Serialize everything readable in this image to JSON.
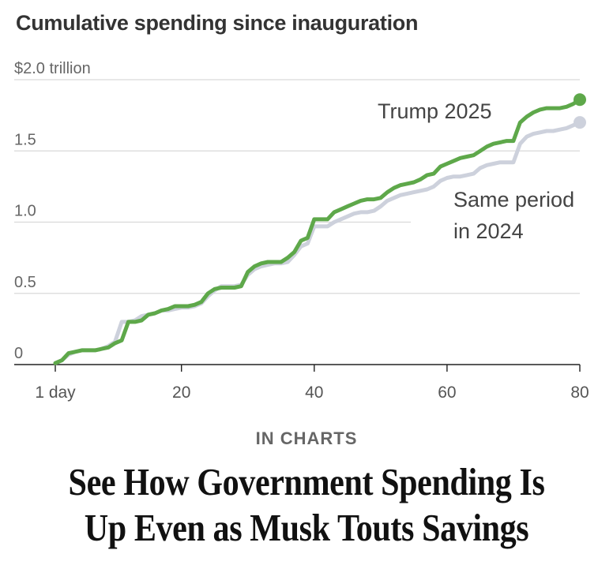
{
  "chart_data": {
    "type": "line",
    "title": "Cumulative spending since inauguration",
    "ylabel": "$2.0 trillion",
    "xlabel": "",
    "xlim": [
      1,
      80
    ],
    "ylim": [
      0,
      2.0
    ],
    "x_ticks": [
      {
        "value": 1,
        "label": "1 day"
      },
      {
        "value": 20,
        "label": "20"
      },
      {
        "value": 40,
        "label": "40"
      },
      {
        "value": 60,
        "label": "60"
      },
      {
        "value": 80,
        "label": "80"
      }
    ],
    "y_ticks": [
      {
        "value": 0,
        "label": "0"
      },
      {
        "value": 0.5,
        "label": "0.5"
      },
      {
        "value": 1.0,
        "label": "1.0"
      },
      {
        "value": 1.5,
        "label": "1.5"
      },
      {
        "value": 2.0,
        "label": "$2.0 trillion"
      }
    ],
    "grid": true,
    "series": [
      {
        "name": "Same period in 2024",
        "label_lines": [
          "Same period",
          "in 2024"
        ],
        "color": "#cdd1dc",
        "x": [
          1,
          2,
          3,
          4,
          5,
          6,
          7,
          8,
          9,
          10,
          11,
          12,
          13,
          14,
          15,
          16,
          17,
          18,
          19,
          20,
          21,
          22,
          23,
          24,
          25,
          26,
          27,
          28,
          29,
          30,
          31,
          32,
          33,
          34,
          35,
          36,
          37,
          38,
          39,
          40,
          41,
          42,
          43,
          44,
          45,
          46,
          47,
          48,
          49,
          50,
          51,
          52,
          53,
          54,
          55,
          56,
          57,
          58,
          59,
          60,
          61,
          62,
          63,
          64,
          65,
          66,
          67,
          68,
          69,
          70,
          71,
          72,
          73,
          74,
          75,
          76,
          77,
          78,
          79,
          80
        ],
        "y": [
          0.01,
          0.03,
          0.07,
          0.09,
          0.1,
          0.1,
          0.1,
          0.11,
          0.13,
          0.16,
          0.3,
          0.3,
          0.31,
          0.34,
          0.35,
          0.36,
          0.38,
          0.38,
          0.39,
          0.4,
          0.4,
          0.41,
          0.43,
          0.48,
          0.52,
          0.55,
          0.55,
          0.55,
          0.56,
          0.63,
          0.67,
          0.69,
          0.7,
          0.71,
          0.71,
          0.72,
          0.77,
          0.83,
          0.85,
          0.97,
          0.97,
          0.97,
          1.0,
          1.02,
          1.04,
          1.06,
          1.07,
          1.07,
          1.08,
          1.11,
          1.15,
          1.17,
          1.19,
          1.2,
          1.21,
          1.22,
          1.23,
          1.25,
          1.29,
          1.31,
          1.32,
          1.32,
          1.33,
          1.34,
          1.38,
          1.4,
          1.41,
          1.42,
          1.42,
          1.42,
          1.55,
          1.6,
          1.62,
          1.63,
          1.64,
          1.64,
          1.65,
          1.66,
          1.68,
          1.7
        ]
      },
      {
        "name": "Trump 2025",
        "label_lines": [
          "Trump 2025"
        ],
        "color": "#5ea84a",
        "x": [
          1,
          2,
          3,
          4,
          5,
          6,
          7,
          8,
          9,
          10,
          11,
          12,
          13,
          14,
          15,
          16,
          17,
          18,
          19,
          20,
          21,
          22,
          23,
          24,
          25,
          26,
          27,
          28,
          29,
          30,
          31,
          32,
          33,
          34,
          35,
          36,
          37,
          38,
          39,
          40,
          41,
          42,
          43,
          44,
          45,
          46,
          47,
          48,
          49,
          50,
          51,
          52,
          53,
          54,
          55,
          56,
          57,
          58,
          59,
          60,
          61,
          62,
          63,
          64,
          65,
          66,
          67,
          68,
          69,
          70,
          71,
          72,
          73,
          74,
          75,
          76,
          77,
          78,
          79,
          80
        ],
        "y": [
          0.01,
          0.03,
          0.08,
          0.09,
          0.1,
          0.1,
          0.1,
          0.11,
          0.12,
          0.15,
          0.17,
          0.3,
          0.3,
          0.31,
          0.35,
          0.36,
          0.38,
          0.39,
          0.41,
          0.41,
          0.41,
          0.42,
          0.44,
          0.5,
          0.53,
          0.54,
          0.54,
          0.54,
          0.55,
          0.65,
          0.69,
          0.71,
          0.72,
          0.72,
          0.72,
          0.75,
          0.79,
          0.87,
          0.89,
          1.02,
          1.02,
          1.02,
          1.07,
          1.09,
          1.11,
          1.13,
          1.15,
          1.16,
          1.16,
          1.17,
          1.21,
          1.24,
          1.26,
          1.27,
          1.28,
          1.3,
          1.33,
          1.34,
          1.39,
          1.41,
          1.43,
          1.45,
          1.46,
          1.47,
          1.5,
          1.53,
          1.55,
          1.56,
          1.57,
          1.57,
          1.7,
          1.74,
          1.77,
          1.79,
          1.8,
          1.8,
          1.8,
          1.81,
          1.83,
          1.86
        ]
      }
    ]
  },
  "article": {
    "kicker": "IN CHARTS",
    "headline_line1": "See How Government Spending Is",
    "headline_line2": "Up Even as Musk Touts Savings"
  }
}
